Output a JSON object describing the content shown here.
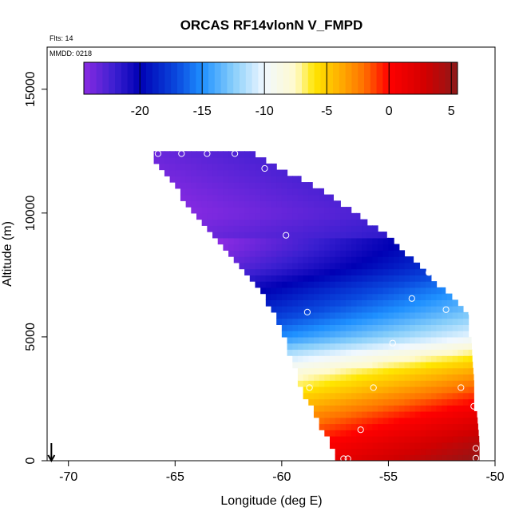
{
  "chart_data": {
    "type": "heatmap",
    "title": "ORCAS RF14vlonN V_FMPD",
    "annotations": {
      "flights": "Flts: 14",
      "date": "MMDD: 0218"
    },
    "xlabel": "Longitude (deg E)",
    "ylabel": "Altitude (m)",
    "xlim": [
      -71,
      -50
    ],
    "ylim": [
      0,
      16700
    ],
    "x_ticks": [
      -70,
      -65,
      -60,
      -55,
      -50
    ],
    "y_ticks": [
      0,
      5000,
      10000,
      15000
    ],
    "colorbar": {
      "range": [
        -24.5,
        5.5
      ],
      "ticks": [
        -20,
        -15,
        -10,
        -5,
        0,
        5
      ],
      "stops": [
        {
          "v": -24.5,
          "c": "#8a2be2"
        },
        {
          "v": -22.0,
          "c": "#3a1fd0"
        },
        {
          "v": -20.0,
          "c": "#0000b4"
        },
        {
          "v": -17.0,
          "c": "#0a4adf"
        },
        {
          "v": -15.0,
          "c": "#1e90ff"
        },
        {
          "v": -12.5,
          "c": "#87cefa"
        },
        {
          "v": -10.0,
          "c": "#f0f8ff"
        },
        {
          "v": -7.5,
          "c": "#fffacd"
        },
        {
          "v": -6.0,
          "c": "#ffe600"
        },
        {
          "v": -4.0,
          "c": "#ffb000"
        },
        {
          "v": -2.0,
          "c": "#ff7000"
        },
        {
          "v": 0.0,
          "c": "#ff0000"
        },
        {
          "v": 3.0,
          "c": "#d00000"
        },
        {
          "v": 5.5,
          "c": "#8b1a1a"
        }
      ]
    },
    "field": {
      "left_edge": [
        [
          12400,
          -66.0
        ],
        [
          10000,
          -64.0
        ],
        [
          7000,
          -61.0
        ],
        [
          5500,
          -60.0
        ],
        [
          4000,
          -59.4
        ],
        [
          3000,
          -59.0
        ],
        [
          2000,
          -58.4
        ],
        [
          800,
          -57.7
        ],
        [
          0,
          -57.3
        ]
      ],
      "right_edge": [
        [
          12400,
          -61.4
        ],
        [
          10800,
          -58.0
        ],
        [
          9000,
          -55.0
        ],
        [
          7400,
          -53.1
        ],
        [
          6500,
          -52.0
        ],
        [
          5800,
          -51.3
        ],
        [
          4000,
          -51.2
        ],
        [
          2000,
          -51.0
        ],
        [
          0,
          -50.8
        ]
      ],
      "levels": [
        [
          0,
          3.5
        ],
        [
          800,
          2.0
        ],
        [
          1800,
          -0.5
        ],
        [
          2800,
          -3.5
        ],
        [
          3600,
          -6.0
        ],
        [
          4300,
          -9.0
        ],
        [
          5000,
          -12.5
        ],
        [
          6000,
          -15.5
        ],
        [
          7000,
          -18.0
        ],
        [
          7800,
          -20.5
        ],
        [
          8600,
          -22.0
        ],
        [
          10000,
          -23.5
        ],
        [
          12400,
          -23.0
        ]
      ],
      "lon_gradient_per_deg": 0.55
    },
    "wind_arrow": {
      "lon": -70.8,
      "alt": 0
    },
    "flight_points": [
      {
        "lon": -65.8,
        "alt": 12400
      },
      {
        "lon": -64.7,
        "alt": 12400
      },
      {
        "lon": -63.5,
        "alt": 12400
      },
      {
        "lon": -62.2,
        "alt": 12400
      },
      {
        "lon": -60.8,
        "alt": 11800
      },
      {
        "lon": -59.8,
        "alt": 9100
      },
      {
        "lon": -53.1,
        "alt": 7600
      },
      {
        "lon": -53.9,
        "alt": 6550
      },
      {
        "lon": -52.3,
        "alt": 6100
      },
      {
        "lon": -51.1,
        "alt": 5950
      },
      {
        "lon": -58.8,
        "alt": 6000
      },
      {
        "lon": -54.8,
        "alt": 4750
      },
      {
        "lon": -58.7,
        "alt": 2950
      },
      {
        "lon": -55.7,
        "alt": 2950
      },
      {
        "lon": -51.6,
        "alt": 2950
      },
      {
        "lon": -51.0,
        "alt": 2200
      },
      {
        "lon": -56.3,
        "alt": 1250
      },
      {
        "lon": -50.9,
        "alt": 500
      },
      {
        "lon": -50.9,
        "alt": 100
      },
      {
        "lon": -57.1,
        "alt": 80
      },
      {
        "lon": -56.9,
        "alt": 80
      }
    ]
  }
}
